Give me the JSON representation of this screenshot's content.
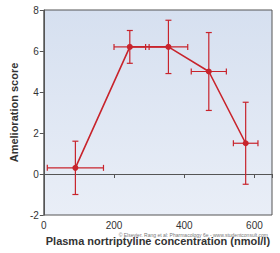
{
  "chart_data": {
    "type": "line",
    "x_label": "Plasma nortriptyline concentration (nmol/l)",
    "y_label": "Amelioration score",
    "annotations": [
      "© Elsevier. Rang et al: Pharmacology 6e - www.studentconsult.com"
    ],
    "x": [
      90,
      245,
      355,
      470,
      575
    ],
    "values": [
      0.3,
      6.2,
      6.2,
      5.0,
      1.5
    ],
    "x_errors": [
      80,
      45,
      55,
      50,
      35
    ],
    "y_errors": [
      1.3,
      0.8,
      1.3,
      1.9,
      2.0
    ],
    "color": "#c8242c",
    "marker": "circle",
    "xlim": [
      0,
      650
    ],
    "xticks": [
      0,
      200,
      400,
      600
    ],
    "ylim": [
      -2,
      8
    ],
    "yticks": [
      -2,
      0,
      2,
      4,
      6,
      8
    ],
    "grid": false
  }
}
